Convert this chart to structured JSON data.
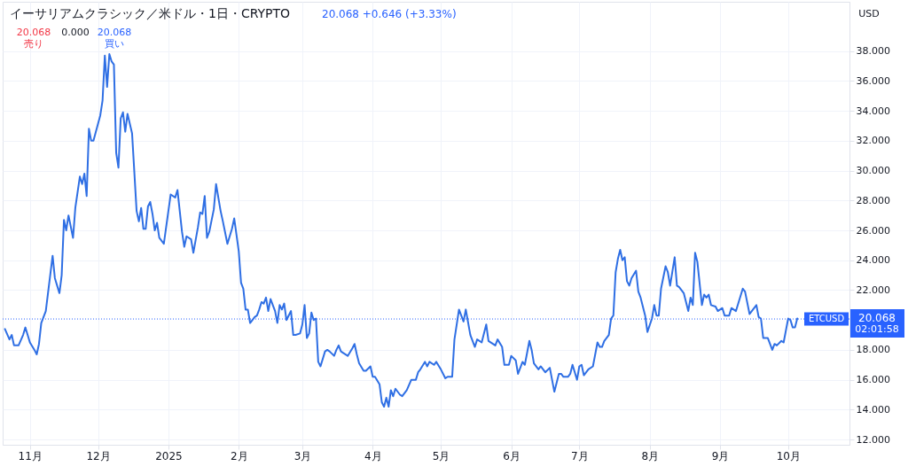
{
  "chart_data": {
    "type": "line",
    "title": "イーサリアムクラシック／米ドル・1日・CRYPTO",
    "subtitle": "20.068 +0.646 (+3.33%)",
    "annotations": [
      "20.068\n売り",
      "0.000",
      "20.068\n買い",
      "USD",
      "20.068",
      "02:01:58"
    ],
    "x": [
      "2024-10-21",
      "2024-10-23",
      "2024-10-24",
      "2024-10-25",
      "2024-10-27",
      "2024-10-29",
      "2024-10-30",
      "2024-10-31",
      "2024-11-01",
      "2024-11-03",
      "2024-11-04",
      "2024-11-05",
      "2024-11-06",
      "2024-11-08",
      "2024-11-11",
      "2024-11-12",
      "2024-11-14",
      "2024-11-15",
      "2024-11-16",
      "2024-11-17",
      "2024-11-18",
      "2024-11-20",
      "2024-11-21",
      "2024-11-23",
      "2024-11-24",
      "2024-11-25",
      "2024-11-26",
      "2024-11-27",
      "2024-11-28",
      "2024-11-29",
      "2024-12-02",
      "2024-12-03",
      "2024-12-04",
      "2024-12-05",
      "2024-12-06",
      "2024-12-07",
      "2024-12-08",
      "2024-12-09",
      "2024-12-10",
      "2024-12-11",
      "2024-12-12",
      "2024-12-13",
      "2024-12-14",
      "2024-12-16",
      "2024-12-18",
      "2024-12-19",
      "2024-12-20",
      "2024-12-21",
      "2024-12-22",
      "2024-12-23",
      "2024-12-24",
      "2024-12-25",
      "2024-12-26",
      "2024-12-27",
      "2024-12-28",
      "2024-12-30",
      "2025-01-02",
      "2025-01-04",
      "2025-01-05",
      "2025-01-07",
      "2025-01-08",
      "2025-01-09",
      "2025-01-11",
      "2025-01-12",
      "2025-01-14",
      "2025-01-15",
      "2025-01-16",
      "2025-01-17",
      "2025-01-18",
      "2025-01-19",
      "2025-01-21",
      "2025-01-22",
      "2025-01-24",
      "2025-01-25",
      "2025-01-27",
      "2025-01-29",
      "2025-01-30",
      "2025-02-01",
      "2025-02-02",
      "2025-02-03",
      "2025-02-04",
      "2025-02-05",
      "2025-02-06",
      "2025-02-08",
      "2025-02-09",
      "2025-02-10",
      "2025-02-11",
      "2025-02-12",
      "2025-02-13",
      "2025-02-14",
      "2025-02-15",
      "2025-02-17",
      "2025-02-18",
      "2025-02-19",
      "2025-02-20",
      "2025-02-21",
      "2025-02-22",
      "2025-02-24",
      "2025-02-25",
      "2025-02-26",
      "2025-02-28",
      "2025-03-01",
      "2025-03-02",
      "2025-03-03",
      "2025-03-04",
      "2025-03-05",
      "2025-03-06",
      "2025-03-07",
      "2025-03-08",
      "2025-03-09",
      "2025-03-11",
      "2025-03-12",
      "2025-03-13",
      "2025-03-15",
      "2025-03-16",
      "2025-03-17",
      "2025-03-18",
      "2025-03-19",
      "2025-03-21",
      "2025-03-23",
      "2025-03-24",
      "2025-03-25",
      "2025-03-26",
      "2025-03-28",
      "2025-03-29",
      "2025-03-31",
      "2025-04-01",
      "2025-04-02",
      "2025-04-04",
      "2025-04-05",
      "2025-04-06",
      "2025-04-07",
      "2025-04-08",
      "2025-04-09",
      "2025-04-10",
      "2025-04-11",
      "2025-04-13",
      "2025-04-14",
      "2025-04-16",
      "2025-04-18",
      "2025-04-20",
      "2025-04-21",
      "2025-04-22",
      "2025-04-24",
      "2025-04-25",
      "2025-04-26",
      "2025-04-28",
      "2025-04-29",
      "2025-05-01",
      "2025-05-03",
      "2025-05-04",
      "2025-05-06",
      "2025-05-07",
      "2025-05-09",
      "2025-05-11",
      "2025-05-12",
      "2025-05-14",
      "2025-05-16",
      "2025-05-17",
      "2025-05-19",
      "2025-05-21",
      "2025-05-22",
      "2025-05-25",
      "2025-05-26",
      "2025-05-28",
      "2025-05-29",
      "2025-05-31",
      "2025-06-01",
      "2025-06-03",
      "2025-06-04",
      "2025-06-06",
      "2025-06-07",
      "2025-06-09",
      "2025-06-10",
      "2025-06-11",
      "2025-06-13",
      "2025-06-14",
      "2025-06-16",
      "2025-06-18",
      "2025-06-20",
      "2025-06-22",
      "2025-06-23",
      "2025-06-24",
      "2025-06-26",
      "2025-06-27",
      "2025-06-28",
      "2025-06-30",
      "2025-07-01",
      "2025-07-02",
      "2025-07-03",
      "2025-07-05",
      "2025-07-07",
      "2025-07-09",
      "2025-07-10",
      "2025-07-11",
      "2025-07-12",
      "2025-07-14",
      "2025-07-15",
      "2025-07-16",
      "2025-07-17",
      "2025-07-18",
      "2025-07-19",
      "2025-07-20",
      "2025-07-21",
      "2025-07-22",
      "2025-07-23",
      "2025-07-24",
      "2025-07-26",
      "2025-07-27",
      "2025-07-28",
      "2025-07-30",
      "2025-07-31",
      "2025-08-02",
      "2025-08-03",
      "2025-08-04",
      "2025-08-05",
      "2025-08-06",
      "2025-08-08",
      "2025-08-09",
      "2025-08-10",
      "2025-08-12",
      "2025-08-13",
      "2025-08-14",
      "2025-08-16",
      "2025-08-18",
      "2025-08-19",
      "2025-08-20",
      "2025-08-21",
      "2025-08-22",
      "2025-08-24",
      "2025-08-25",
      "2025-08-26",
      "2025-08-27",
      "2025-08-28",
      "2025-08-30",
      "2025-08-31",
      "2025-09-02",
      "2025-09-03",
      "2025-09-05",
      "2025-09-06",
      "2025-09-08",
      "2025-09-11",
      "2025-09-12",
      "2025-09-14",
      "2025-09-17",
      "2025-09-18",
      "2025-09-19",
      "2025-09-20",
      "2025-09-22",
      "2025-09-24",
      "2025-09-25",
      "2025-09-26",
      "2025-09-28",
      "2025-09-29",
      "2025-10-01",
      "2025-10-02",
      "2025-10-03",
      "2025-10-04",
      "2025-10-05"
    ],
    "series": [
      {
        "color": "#2f6fe4",
        "values": [
          19.4,
          18.7,
          19.0,
          18.3,
          18.3,
          19.0,
          19.5,
          19.0,
          18.5,
          18.0,
          17.7,
          18.4,
          19.8,
          20.6,
          24.3,
          22.8,
          21.8,
          23.0,
          26.7,
          26.0,
          27.0,
          25.5,
          27.5,
          29.6,
          29.1,
          29.8,
          28.3,
          32.8,
          32.0,
          32.0,
          33.7,
          34.7,
          37.7,
          35.6,
          37.8,
          37.3,
          37.1,
          31.2,
          30.2,
          33.5,
          33.9,
          32.6,
          33.8,
          32.5,
          27.3,
          26.6,
          27.5,
          26.1,
          26.1,
          27.6,
          27.9,
          27.1,
          26.0,
          26.5,
          25.5,
          25.1,
          28.4,
          28.2,
          28.7,
          25.9,
          24.9,
          25.6,
          25.4,
          24.5,
          26.2,
          27.2,
          27.1,
          28.3,
          25.5,
          25.9,
          27.4,
          29.1,
          27.3,
          26.6,
          25.1,
          26.1,
          26.8,
          24.6,
          22.5,
          22.1,
          20.7,
          20.7,
          19.8,
          20.2,
          20.3,
          20.7,
          21.2,
          21.1,
          21.5,
          20.6,
          21.4,
          20.6,
          19.8,
          21.0,
          20.7,
          21.1,
          20.0,
          20.6,
          19.0,
          19.0,
          19.1,
          19.7,
          21.0,
          18.8,
          19.1,
          20.5,
          20.0,
          20.1,
          17.2,
          16.9,
          17.9,
          18.0,
          17.9,
          17.6,
          18.0,
          18.3,
          17.9,
          17.8,
          17.6,
          18.1,
          18.4,
          17.7,
          17.1,
          16.6,
          16.6,
          16.9,
          16.2,
          16.2,
          15.7,
          14.5,
          14.2,
          14.8,
          14.2,
          15.3,
          14.9,
          15.4,
          15.0,
          14.9,
          15.3,
          16.0,
          16.0,
          16.5,
          16.7,
          17.2,
          16.9,
          17.2,
          17.0,
          17.2,
          16.7,
          16.1,
          16.2,
          16.2,
          18.7,
          20.7,
          19.9,
          20.7,
          19.0,
          18.2,
          18.7,
          18.5,
          19.7,
          18.6,
          18.3,
          18.7,
          18.2,
          17.0,
          17.0,
          17.6,
          17.3,
          16.4,
          17.2,
          17.0,
          18.6,
          18.0,
          17.1,
          16.7,
          16.9,
          16.5,
          16.8,
          15.2,
          16.4,
          16.4,
          16.2,
          16.2,
          16.4,
          17.0,
          16.0,
          16.9,
          17.0,
          16.3,
          16.7,
          16.9,
          18.5,
          18.2,
          18.2,
          18.6,
          19.0,
          20.1,
          20.3,
          23.2,
          24.1,
          24.7,
          24.0,
          24.2,
          22.6,
          22.3,
          22.8,
          23.3,
          21.9,
          21.5,
          20.3,
          19.2,
          20.1,
          21.0,
          20.3,
          20.3,
          22.1,
          23.6,
          23.2,
          22.3,
          24.2,
          22.3,
          22.2,
          21.8,
          20.6,
          21.5,
          21.0,
          24.5,
          23.9,
          21.0,
          21.7,
          21.5,
          21.7,
          21.0,
          20.9,
          20.6,
          20.8,
          20.3,
          20.3,
          20.8,
          20.6,
          22.1,
          21.9,
          20.4,
          21.0,
          20.2,
          20.1,
          18.8,
          18.8,
          18.0,
          18.4,
          18.3,
          18.6,
          18.5,
          20.1,
          20.0,
          19.5,
          19.5,
          20.1
        ]
      }
    ],
    "xlim": [
      "2024-10-20",
      "2025-10-28"
    ],
    "xticks": [
      {
        "value": "2024-11-01",
        "label": "11月"
      },
      {
        "value": "2024-12-01",
        "label": "12月"
      },
      {
        "value": "2025-01-01",
        "label": "2025"
      },
      {
        "value": "2025-02-01",
        "label": "2月"
      },
      {
        "value": "2025-03-01",
        "label": "3月"
      },
      {
        "value": "2025-04-01",
        "label": "4月"
      },
      {
        "value": "2025-05-01",
        "label": "5月"
      },
      {
        "value": "2025-06-01",
        "label": "6月"
      },
      {
        "value": "2025-07-01",
        "label": "7月"
      },
      {
        "value": "2025-08-01",
        "label": "8月"
      },
      {
        "value": "2025-09-01",
        "label": "9月"
      },
      {
        "value": "2025-10-01",
        "label": "10月"
      }
    ],
    "ylim": [
      11.65,
      41.3
    ],
    "yticks": [
      {
        "value": 12,
        "label": "12.000"
      },
      {
        "value": 14,
        "label": "14.000"
      },
      {
        "value": 16,
        "label": "16.000"
      },
      {
        "value": 18,
        "label": "18.000"
      },
      {
        "value": 22,
        "label": "22.000"
      },
      {
        "value": 24,
        "label": "24.000"
      },
      {
        "value": 26,
        "label": "26.000"
      },
      {
        "value": 28,
        "label": "28.000"
      },
      {
        "value": 30,
        "label": "30.000"
      },
      {
        "value": 32,
        "label": "32.000"
      },
      {
        "value": 34,
        "label": "34.000"
      },
      {
        "value": 36,
        "label": "36.000"
      },
      {
        "value": 38,
        "label": "38.000"
      }
    ],
    "ref_lines": [
      {
        "axis": "y",
        "value": 20.068,
        "label": "ETCUSD",
        "color": "#2962ff",
        "line_style": "dotted"
      }
    ],
    "grid": true,
    "line_style": "solid",
    "marker": "none"
  }
}
